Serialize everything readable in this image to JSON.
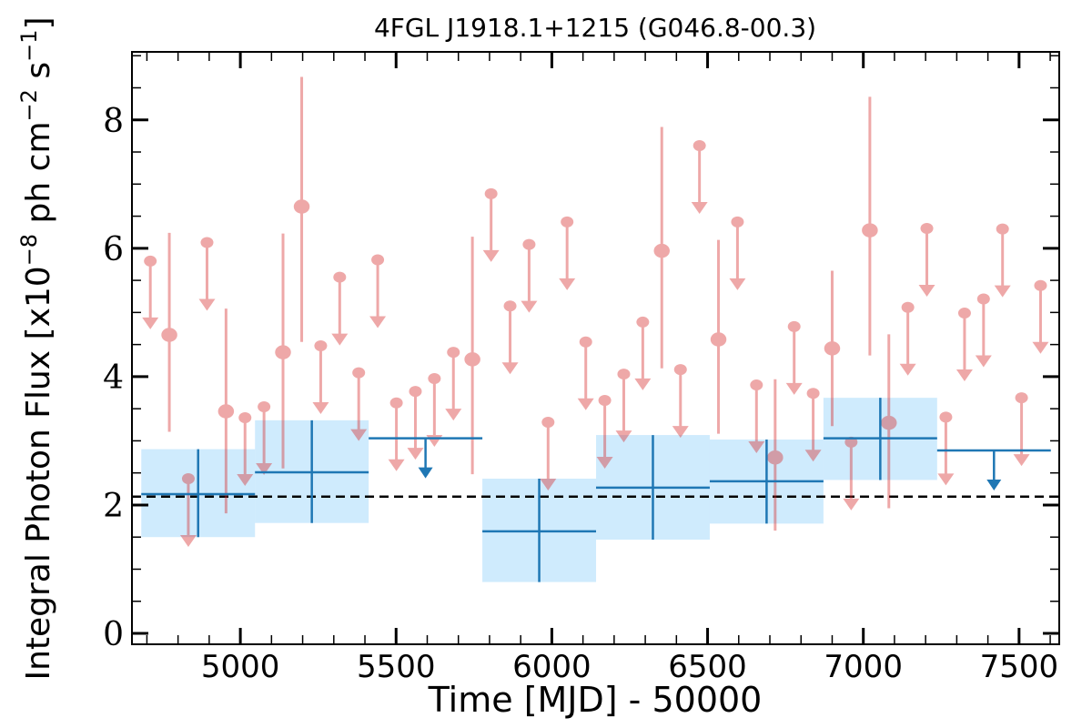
{
  "chart_data": {
    "type": "scatter",
    "title": "4FGL J1918.1+1215 (G046.8-00.3)",
    "xlabel": "Time [MJD] - 50000",
    "ylabel": "Integral Photon Flux [x10^-8 ph cm^-2 s^-1]",
    "ylabel_parts": [
      "Integral Photon Flux [x10",
      "−8",
      " ph cm",
      "−2",
      " s",
      "−1",
      "]"
    ],
    "xlim": [
      4652,
      7629
    ],
    "ylim": [
      -0.17,
      9.06
    ],
    "xticks": [
      5000,
      5500,
      6000,
      6500,
      7000,
      7500
    ],
    "yticks": [
      0,
      2,
      4,
      6,
      8
    ],
    "x_minor_step": 100,
    "y_minor_step": 0.5,
    "grid": false,
    "colors": {
      "short_bins": "#d62728",
      "yearly_bins": "#1f77b4",
      "yearly_band": "#87cefa",
      "mean_line": "#000000"
    },
    "mean_flux": 2.13,
    "short_bins": [
      {
        "mjd": 4711,
        "flux": 5.8,
        "ul": true
      },
      {
        "mjd": 4772,
        "flux": 4.65,
        "ul": false,
        "err": [
          3.14,
          6.24
        ]
      },
      {
        "mjd": 4833,
        "flux": 2.41,
        "ul": true
      },
      {
        "mjd": 4893,
        "flux": 6.09,
        "ul": true
      },
      {
        "mjd": 4954,
        "flux": 3.46,
        "ul": false,
        "err": [
          1.87,
          5.06
        ]
      },
      {
        "mjd": 5015,
        "flux": 3.36,
        "ul": true
      },
      {
        "mjd": 5076,
        "flux": 3.53,
        "ul": true
      },
      {
        "mjd": 5137,
        "flux": 4.38,
        "ul": false,
        "err": [
          2.57,
          6.23
        ]
      },
      {
        "mjd": 5197,
        "flux": 6.65,
        "ul": false,
        "err": [
          4.54,
          8.67
        ]
      },
      {
        "mjd": 5258,
        "flux": 4.48,
        "ul": true
      },
      {
        "mjd": 5319,
        "flux": 5.55,
        "ul": true
      },
      {
        "mjd": 5380,
        "flux": 4.06,
        "ul": true
      },
      {
        "mjd": 5441,
        "flux": 5.82,
        "ul": true
      },
      {
        "mjd": 5501,
        "flux": 3.59,
        "ul": true
      },
      {
        "mjd": 5562,
        "flux": 3.77,
        "ul": true
      },
      {
        "mjd": 5623,
        "flux": 3.97,
        "ul": true
      },
      {
        "mjd": 5684,
        "flux": 4.38,
        "ul": true
      },
      {
        "mjd": 5745,
        "flux": 4.27,
        "ul": false,
        "err": [
          2.48,
          6.18
        ]
      },
      {
        "mjd": 5805,
        "flux": 6.85,
        "ul": true
      },
      {
        "mjd": 5866,
        "flux": 5.1,
        "ul": true
      },
      {
        "mjd": 5927,
        "flux": 6.06,
        "ul": true
      },
      {
        "mjd": 5988,
        "flux": 3.29,
        "ul": true
      },
      {
        "mjd": 6049,
        "flux": 6.41,
        "ul": true
      },
      {
        "mjd": 6109,
        "flux": 4.54,
        "ul": true
      },
      {
        "mjd": 6170,
        "flux": 3.63,
        "ul": true
      },
      {
        "mjd": 6231,
        "flux": 4.04,
        "ul": true
      },
      {
        "mjd": 6292,
        "flux": 4.85,
        "ul": true
      },
      {
        "mjd": 6353,
        "flux": 5.96,
        "ul": false,
        "err": [
          4.13,
          7.89
        ]
      },
      {
        "mjd": 6413,
        "flux": 4.11,
        "ul": true
      },
      {
        "mjd": 6474,
        "flux": 7.6,
        "ul": true
      },
      {
        "mjd": 6535,
        "flux": 4.58,
        "ul": false,
        "err": [
          3.11,
          6.13
        ]
      },
      {
        "mjd": 6596,
        "flux": 6.41,
        "ul": true
      },
      {
        "mjd": 6657,
        "flux": 3.87,
        "ul": true
      },
      {
        "mjd": 6717,
        "flux": 2.74,
        "ul": false,
        "err": [
          1.6,
          3.96
        ]
      },
      {
        "mjd": 6778,
        "flux": 4.78,
        "ul": true
      },
      {
        "mjd": 6839,
        "flux": 3.74,
        "ul": true
      },
      {
        "mjd": 6900,
        "flux": 4.44,
        "ul": false,
        "err": [
          3.23,
          5.65
        ]
      },
      {
        "mjd": 6961,
        "flux": 2.98,
        "ul": true
      },
      {
        "mjd": 7021,
        "flux": 6.28,
        "ul": false,
        "err": [
          4.33,
          8.36
        ]
      },
      {
        "mjd": 7082,
        "flux": 3.28,
        "ul": false,
        "err": [
          1.95,
          4.66
        ]
      },
      {
        "mjd": 7143,
        "flux": 5.08,
        "ul": true
      },
      {
        "mjd": 7204,
        "flux": 6.31,
        "ul": true
      },
      {
        "mjd": 7265,
        "flux": 3.37,
        "ul": true
      },
      {
        "mjd": 7325,
        "flux": 4.99,
        "ul": true
      },
      {
        "mjd": 7386,
        "flux": 5.21,
        "ul": true
      },
      {
        "mjd": 7447,
        "flux": 6.3,
        "ul": true
      },
      {
        "mjd": 7508,
        "flux": 3.67,
        "ul": true
      },
      {
        "mjd": 7569,
        "flux": 5.42,
        "ul": true
      }
    ],
    "yearly_bins": [
      {
        "start": 4682,
        "end": 5047,
        "flux": 2.17,
        "ul": false,
        "err": [
          1.5,
          2.87
        ]
      },
      {
        "start": 5047,
        "end": 5412,
        "flux": 2.51,
        "ul": false,
        "err": [
          1.72,
          3.32
        ]
      },
      {
        "start": 5412,
        "end": 5777,
        "flux": 3.04,
        "ul": true
      },
      {
        "start": 5777,
        "end": 6142,
        "flux": 1.59,
        "ul": false,
        "err": [
          0.8,
          2.41
        ]
      },
      {
        "start": 6142,
        "end": 6507,
        "flux": 2.27,
        "ul": false,
        "err": [
          1.46,
          3.09
        ]
      },
      {
        "start": 6507,
        "end": 6872,
        "flux": 2.37,
        "ul": false,
        "err": [
          1.71,
          3.02
        ]
      },
      {
        "start": 6872,
        "end": 7237,
        "flux": 3.04,
        "ul": false,
        "err": [
          2.39,
          3.67
        ]
      },
      {
        "start": 7237,
        "end": 7602,
        "flux": 2.85,
        "ul": true
      }
    ]
  }
}
